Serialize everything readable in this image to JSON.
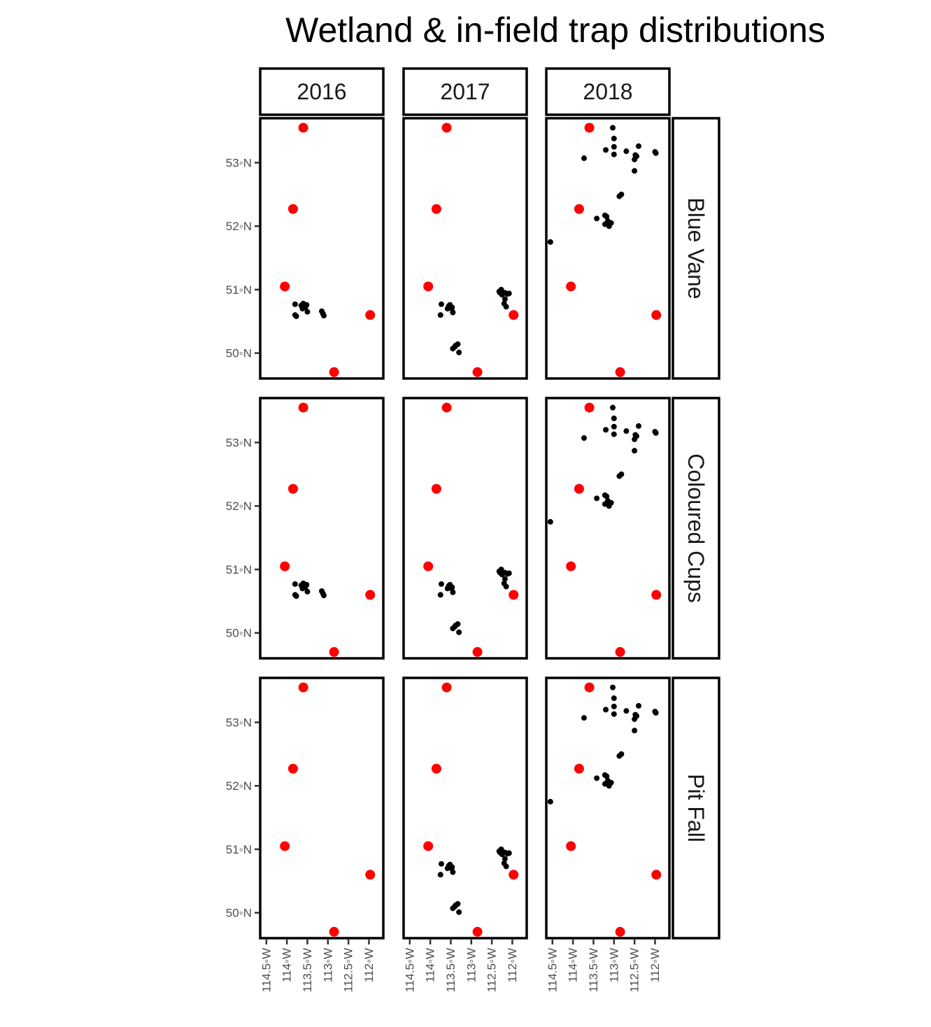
{
  "chart_data": {
    "type": "scatter",
    "title": "Wetland & in-field trap distributions",
    "xlabel": "",
    "ylabel": "",
    "xlim": [
      -114.65,
      -111.65
    ],
    "ylim": [
      49.6,
      53.7
    ],
    "x_ticks": [
      {
        "value": -114.5,
        "label": "114.5◦W"
      },
      {
        "value": -114.0,
        "label": "114◦W"
      },
      {
        "value": -113.5,
        "label": "113.5◦W"
      },
      {
        "value": -113.0,
        "label": "113◦W"
      },
      {
        "value": -112.5,
        "label": "112.5◦W"
      },
      {
        "value": -112.0,
        "label": "112◦W"
      }
    ],
    "y_ticks": [
      {
        "value": 50,
        "label": "50◦N"
      },
      {
        "value": 51,
        "label": "51◦N"
      },
      {
        "value": 52,
        "label": "52◦N"
      },
      {
        "value": 53,
        "label": "53◦N"
      }
    ],
    "columns": [
      "2016",
      "2017",
      "2018"
    ],
    "rows": [
      "Blue Vane",
      "Coloured Cups",
      "Pit Fall"
    ],
    "legend": "none",
    "grid": false,
    "colors": {
      "reference": "#ff0000",
      "trap": "#000000"
    },
    "reference_points": [
      {
        "x": -113.6,
        "y": 53.55
      },
      {
        "x": -113.85,
        "y": 52.27
      },
      {
        "x": -114.05,
        "y": 51.05
      },
      {
        "x": -111.97,
        "y": 50.6
      },
      {
        "x": -112.85,
        "y": 49.7
      }
    ],
    "trap_points": {
      "A": [
        {
          "x": -113.8,
          "y": 50.77
        },
        {
          "x": -113.8,
          "y": 50.6
        },
        {
          "x": -113.77,
          "y": 50.58
        },
        {
          "x": -113.6,
          "y": 50.78
        },
        {
          "x": -113.58,
          "y": 50.73
        },
        {
          "x": -113.62,
          "y": 50.7
        },
        {
          "x": -113.52,
          "y": 50.76
        },
        {
          "x": -113.5,
          "y": 50.65
        },
        {
          "x": -113.55,
          "y": 50.72
        },
        {
          "x": -113.15,
          "y": 50.66
        },
        {
          "x": -113.12,
          "y": 50.62
        },
        {
          "x": -113.1,
          "y": 50.59
        },
        {
          "x": -113.65,
          "y": 50.75
        }
      ],
      "B": [
        {
          "x": -113.73,
          "y": 50.77
        },
        {
          "x": -113.75,
          "y": 50.6
        },
        {
          "x": -113.58,
          "y": 50.7
        },
        {
          "x": -113.52,
          "y": 50.76
        },
        {
          "x": -113.47,
          "y": 50.72
        },
        {
          "x": -113.45,
          "y": 50.64
        },
        {
          "x": -113.55,
          "y": 50.74
        },
        {
          "x": -113.48,
          "y": 50.7
        },
        {
          "x": -113.45,
          "y": 50.07
        },
        {
          "x": -113.38,
          "y": 50.12
        },
        {
          "x": -113.33,
          "y": 50.14
        },
        {
          "x": -113.3,
          "y": 50.01
        },
        {
          "x": -113.4,
          "y": 50.1
        },
        {
          "x": -112.3,
          "y": 50.95
        },
        {
          "x": -112.27,
          "y": 51.0
        },
        {
          "x": -112.25,
          "y": 50.92
        },
        {
          "x": -112.18,
          "y": 50.95
        },
        {
          "x": -112.12,
          "y": 50.93
        },
        {
          "x": -112.08,
          "y": 50.94
        },
        {
          "x": -112.18,
          "y": 50.85
        },
        {
          "x": -112.2,
          "y": 50.78
        },
        {
          "x": -112.15,
          "y": 50.73
        },
        {
          "x": -112.32,
          "y": 50.97
        }
      ],
      "C": [
        {
          "x": -113.03,
          "y": 53.55
        },
        {
          "x": -113.0,
          "y": 53.38
        },
        {
          "x": -113.0,
          "y": 53.25
        },
        {
          "x": -113.2,
          "y": 53.2
        },
        {
          "x": -113.0,
          "y": 53.13
        },
        {
          "x": -112.7,
          "y": 53.18
        },
        {
          "x": -112.45,
          "y": 53.1
        },
        {
          "x": -112.5,
          "y": 53.05
        },
        {
          "x": -112.4,
          "y": 53.26
        },
        {
          "x": -112.5,
          "y": 52.87
        },
        {
          "x": -113.73,
          "y": 53.07
        },
        {
          "x": -112.0,
          "y": 53.17
        },
        {
          "x": -111.98,
          "y": 53.15
        },
        {
          "x": -112.48,
          "y": 53.12
        },
        {
          "x": -112.82,
          "y": 52.5
        },
        {
          "x": -112.87,
          "y": 52.47
        },
        {
          "x": -113.42,
          "y": 52.12
        },
        {
          "x": -113.22,
          "y": 52.17
        },
        {
          "x": -113.18,
          "y": 52.15
        },
        {
          "x": -113.22,
          "y": 52.03
        },
        {
          "x": -113.07,
          "y": 52.05
        },
        {
          "x": -113.12,
          "y": 52.0
        },
        {
          "x": -113.15,
          "y": 52.08
        },
        {
          "x": -114.55,
          "y": 51.75
        }
      ]
    },
    "panel_layout": [
      [
        "A",
        "B",
        "C"
      ],
      [
        "A",
        "B",
        "C"
      ],
      [
        "",
        "B",
        "C"
      ]
    ]
  }
}
